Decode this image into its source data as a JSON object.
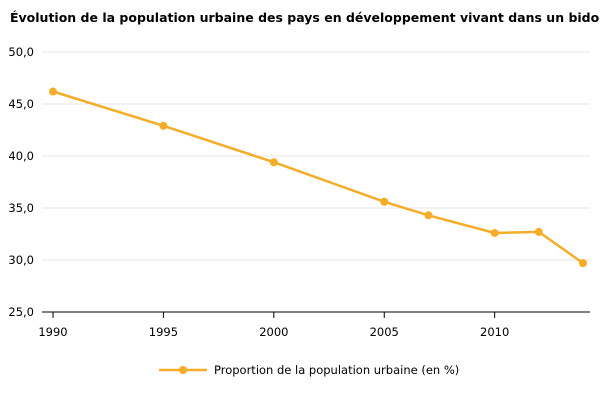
{
  "chart_data": {
    "type": "line",
    "title": "Évolution de la population urbaine des pays en développement vivant dans un bidonville",
    "xlabel": "",
    "ylabel": "",
    "xlim": [
      1990,
      2014
    ],
    "ylim": [
      25,
      50
    ],
    "x_ticks": [
      "1990",
      "1995",
      "2000",
      "2005",
      "2010"
    ],
    "y_ticks": [
      "25,0",
      "30,0",
      "35,0",
      "40,0",
      "45,0",
      "50,0"
    ],
    "grid": true,
    "legend_position": "bottom",
    "series": [
      {
        "name": "Proportion de la population urbaine (en %)",
        "color": "#f5ad29",
        "x": [
          1990,
          1995,
          2000,
          2005,
          2007,
          2010,
          2012,
          2014
        ],
        "values": [
          46.2,
          42.9,
          39.4,
          35.6,
          34.3,
          32.6,
          32.7,
          29.7
        ]
      }
    ]
  }
}
